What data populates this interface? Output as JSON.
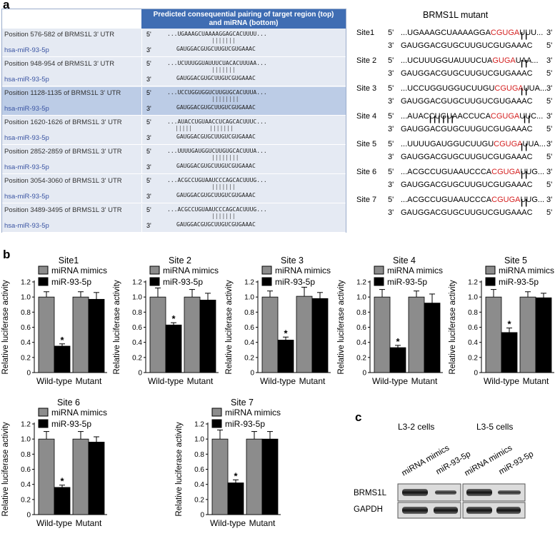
{
  "panels": {
    "a": "a",
    "b": "b",
    "c": "c"
  },
  "table_a": {
    "header": "Predicted consequential pairing of target region (top)\nand miRNA (bottom)",
    "label5": "5'",
    "label3": "3'",
    "rows": [
      {
        "position": "Position 576-582 of BRMS1L 3' UTR",
        "mirna": "hsa-miR-93-5p",
        "target": "...UGAAAGCUAAAAGGAGCACUUUU...",
        "bars": "|||||||",
        "mir_seq": "GAUGGACGUGCUUGUCGUGAAAC"
      },
      {
        "position": "Position 948-954 of BRMS1L 3' UTR",
        "mirna": "hsa-miR-93-5p",
        "target": "...UCUUUGGUAUUUCUACACUUUAA...",
        "bars": "|||||||",
        "mir_seq": "GAUGGACGUGCUUGUCGUGAAAC"
      },
      {
        "position": "Position 1128-1135 of BRMS1L 3' UTR",
        "mirna": "hsa-miR-93-5p",
        "target": "...UCCUGGUGGUCUUGUGCACUUUA...",
        "bars": "||||||||",
        "mir_seq": "GAUGGACGUGCUUGUCGUGAAAC"
      },
      {
        "position": "Position 1620-1626 of BRMS1L 3' UTR",
        "mirna": "hsa-miR-93-5p",
        "target": "...AUACCUGUAACCUCAGCACUUUC...",
        "bars": "|||||     |||||||",
        "mir_seq": "GAUGGACGUGCUUGUCGUGAAAC"
      },
      {
        "position": "Position 2852-2859 of BRMS1L 3' UTR",
        "mirna": "hsa-miR-93-5p",
        "target": "...UUUUGAUGGUCUUGUGCACUUUA...",
        "bars": "||||||||",
        "mir_seq": "GAUGGACGUGCUUGUCGUGAAAC"
      },
      {
        "position": "Position 3054-3060 of BRMS1L 3' UTR",
        "mirna": "hsa-miR-93-5p",
        "target": "...ACGCCUGUAAUCCCAGCACUUUG...",
        "bars": "|||||||",
        "mir_seq": "GAUGGACGUGCUUGUCGUGAAAC"
      },
      {
        "position": "Position 3489-3495 of BRMS1L 3' UTR",
        "mirna": "hsa-miR-93-5p",
        "target": "...ACGCCUGUAAUCCCAGCACUUUG...",
        "bars": "|||||||",
        "mir_seq": "GAUGGACGUGCUUGUCGUGAAAC"
      }
    ]
  },
  "mutant": {
    "title": "BRMS1L mutant",
    "label5": "5'",
    "label3": "3'",
    "sites": [
      {
        "name": "Site1",
        "pre": "...UGAAAGCUAAAAGGA",
        "red": "CGUGA",
        "post": "UUU...",
        "bars": "| |",
        "mir": "GAUGGACGUGCUUGUCGUGAAAC"
      },
      {
        "name": "Site 2",
        "pre": "...UCUUUGGUAUUUCUA",
        "red": "GUGA",
        "post": "UAA...",
        "bars": "| |",
        "mir": "GAUGGACGUGCUUGUCGUGAAAC"
      },
      {
        "name": "Site 3",
        "pre": "...UCCUGGUGGUCUUGU",
        "red": "CGUGA",
        "post": "UUA...",
        "bars": "| |",
        "mir": "GAUGGACGUGCUUGUCGUGAAAC"
      },
      {
        "name": "Site 4",
        "pre": "...AUACCUGUAACCUCA",
        "red": "CGUGA",
        "post": "UUC...",
        "bars": "| | | | | |",
        "bars2": "| |",
        "mir": "GAUGGACGUGCUUGUCGUGAAAC"
      },
      {
        "name": "Site 5",
        "pre": "...UUUUGAUGGUCUUGU",
        "red": "CGUGA",
        "post": "UUA...",
        "bars": "| |",
        "mir": "GAUGGACGUGCUUGUCGUGAAAC"
      },
      {
        "name": "Site 6",
        "pre": "...ACGCCUGUAAUCCCA",
        "red": "CGUGA",
        "post": "UUG...",
        "bars": "| |",
        "mir": "GAUGGACGUGCUUGUCGUGAAAC"
      },
      {
        "name": "Site 7",
        "pre": "...ACGCCUGUAAUCCCA",
        "red": "CGUGA",
        "post": "UUG...",
        "bars": "| |",
        "mir": "GAUGGACGUGCUUGUCGUGAAAC"
      }
    ]
  },
  "chart_data": [
    {
      "type": "bar",
      "title": "Site1",
      "ylabel": "Relative luciferase activity",
      "ylim": [
        0,
        1.2
      ],
      "yticks": [
        "0",
        "0.2",
        "0.4",
        "0.6",
        "0.8",
        "1.0",
        "1.2"
      ],
      "categories": [
        "Wild-type",
        "Mutant"
      ],
      "series": [
        {
          "name": "miRNA mimics",
          "color": "#8c8c8c",
          "values": [
            1.0,
            1.0
          ],
          "errors": [
            0.07,
            0.07
          ]
        },
        {
          "name": "miR-93-5p",
          "color": "#000000",
          "values": [
            0.35,
            0.97
          ],
          "errors": [
            0.03,
            0.09
          ]
        }
      ],
      "annotations": [
        "*",
        ""
      ]
    },
    {
      "type": "bar",
      "title": "Site 2",
      "ylabel": "Relative luciferase activity",
      "ylim": [
        0,
        1.2
      ],
      "yticks": [
        "0",
        "0.2",
        "0.4",
        "0.6",
        "0.8",
        "1.0",
        "1.2"
      ],
      "categories": [
        "Wild-type",
        "Mutant"
      ],
      "series": [
        {
          "name": "miRNA mimics",
          "color": "#8c8c8c",
          "values": [
            1.0,
            1.0
          ],
          "errors": [
            0.12,
            0.1
          ]
        },
        {
          "name": "miR-93-5p",
          "color": "#000000",
          "values": [
            0.63,
            0.96
          ],
          "errors": [
            0.03,
            0.09
          ]
        }
      ],
      "annotations": [
        "*",
        ""
      ]
    },
    {
      "type": "bar",
      "title": "Site 3",
      "ylabel": "Relative luciferase activity",
      "ylim": [
        0,
        1.2
      ],
      "yticks": [
        "0",
        "0.2",
        "0.4",
        "0.6",
        "0.8",
        "1.0",
        "1.2"
      ],
      "categories": [
        "Wild-type",
        "Mutant"
      ],
      "series": [
        {
          "name": "miRNA mimics",
          "color": "#8c8c8c",
          "values": [
            1.0,
            1.01
          ],
          "errors": [
            0.08,
            0.12
          ]
        },
        {
          "name": "miR-93-5p",
          "color": "#000000",
          "values": [
            0.43,
            0.98
          ],
          "errors": [
            0.04,
            0.08
          ]
        }
      ],
      "annotations": [
        "*",
        ""
      ]
    },
    {
      "type": "bar",
      "title": "Site 4",
      "ylabel": "Relative luciferase activity",
      "ylim": [
        0,
        1.2
      ],
      "yticks": [
        "0",
        "0.2",
        "0.4",
        "0.6",
        "0.8",
        "1.0",
        "1.2"
      ],
      "categories": [
        "Wild-type",
        "Mutant"
      ],
      "series": [
        {
          "name": "miRNA mimics",
          "color": "#8c8c8c",
          "values": [
            1.0,
            1.0
          ],
          "errors": [
            0.1,
            0.08
          ]
        },
        {
          "name": "miR-93-5p",
          "color": "#000000",
          "values": [
            0.33,
            0.92
          ],
          "errors": [
            0.03,
            0.12
          ]
        }
      ],
      "annotations": [
        "*",
        ""
      ]
    },
    {
      "type": "bar",
      "title": "Site 5",
      "ylabel": "Relative luciferase activity",
      "ylim": [
        0,
        1.2
      ],
      "yticks": [
        "0",
        "0.2",
        "0.4",
        "0.6",
        "0.8",
        "1.0",
        "1.2"
      ],
      "categories": [
        "Wild-type",
        "Mutant"
      ],
      "series": [
        {
          "name": "miRNA mimics",
          "color": "#8c8c8c",
          "values": [
            1.0,
            1.0
          ],
          "errors": [
            0.1,
            0.07
          ]
        },
        {
          "name": "miR-93-5p",
          "color": "#000000",
          "values": [
            0.53,
            0.99
          ],
          "errors": [
            0.06,
            0.06
          ]
        }
      ],
      "annotations": [
        "*",
        ""
      ]
    },
    {
      "type": "bar",
      "title": "Site 6",
      "ylabel": "Relative luciferase activity",
      "ylim": [
        0,
        1.2
      ],
      "yticks": [
        "0",
        "0.2",
        "0.4",
        "0.6",
        "0.8",
        "1.0",
        "1.2"
      ],
      "categories": [
        "Wild-type",
        "Mutant"
      ],
      "series": [
        {
          "name": "miRNA mimics",
          "color": "#8c8c8c",
          "values": [
            1.0,
            1.0
          ],
          "errors": [
            0.1,
            0.1
          ]
        },
        {
          "name": "miR-93-5p",
          "color": "#000000",
          "values": [
            0.36,
            0.96
          ],
          "errors": [
            0.03,
            0.07
          ]
        }
      ],
      "annotations": [
        "*",
        ""
      ]
    },
    {
      "type": "bar",
      "title": "Site 7",
      "ylabel": "Relative luciferase activity",
      "ylim": [
        0,
        1.2
      ],
      "yticks": [
        "0",
        "0.2",
        "0.4",
        "0.6",
        "0.8",
        "1.0",
        "1.2"
      ],
      "categories": [
        "Wild-type",
        "Mutant"
      ],
      "series": [
        {
          "name": "miRNA mimics",
          "color": "#8c8c8c",
          "values": [
            1.0,
            1.0
          ],
          "errors": [
            0.12,
            0.1
          ]
        },
        {
          "name": "miR-93-5p",
          "color": "#000000",
          "values": [
            0.42,
            1.0
          ],
          "errors": [
            0.04,
            0.1
          ]
        }
      ],
      "annotations": [
        "*",
        ""
      ]
    }
  ],
  "blot": {
    "groups": [
      "L3-2 cells",
      "L3-5 cells"
    ],
    "lanes": [
      "miRNA mimics",
      "miR-93-5p",
      "miRNA mimics",
      "miR-93-5p"
    ],
    "proteins": [
      "BRMS1L",
      "GAPDH"
    ]
  }
}
